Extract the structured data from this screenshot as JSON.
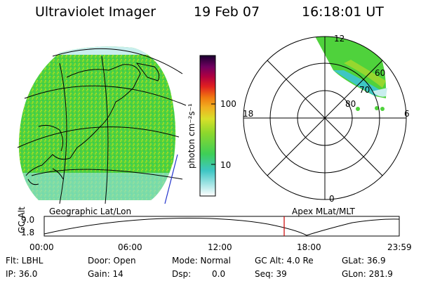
{
  "header": {
    "instrument": "Ultraviolet Imager",
    "date": "19 Feb 07",
    "time": "16:18:01 UT"
  },
  "colorbar": {
    "unit_label": "photon cm⁻²s⁻¹",
    "ticks": [
      "100",
      "10"
    ]
  },
  "polar_plot": {
    "mlt_labels": {
      "top": "12",
      "left": "18",
      "right": "6",
      "bottom": "0"
    },
    "lat_labels": [
      "60",
      "70",
      "80"
    ]
  },
  "panel_labels": {
    "left": "Geographic Lat/Lon",
    "right": "Apex MLat/MLT"
  },
  "altitude_plot": {
    "ylabel": "GC Alt",
    "yticks": [
      "9.0",
      "1.8"
    ],
    "xticks": [
      "00:00",
      "06:00",
      "12:00",
      "18:00",
      "23:59"
    ],
    "marker_time": "16:18:01"
  },
  "params": {
    "flt": "Flt: LBHL",
    "ip": "IP: 36.0",
    "door": "Door: Open",
    "gain": "Gain: 14",
    "mode": "Mode: Normal",
    "dsp_label": "Dsp:",
    "dsp_value": "0.0",
    "gc_alt": "GC Alt: 4.0 Re",
    "seq": "Seq: 39",
    "glat": "GLat:  36.9",
    "glon": "GLon: 281.9"
  },
  "colors": {
    "aurora_green": "#4ccf3a",
    "aurora_yellowgreen": "#a8d82c",
    "aurora_cyan": "#3ec6c4",
    "marker_red": "#cc0000"
  }
}
